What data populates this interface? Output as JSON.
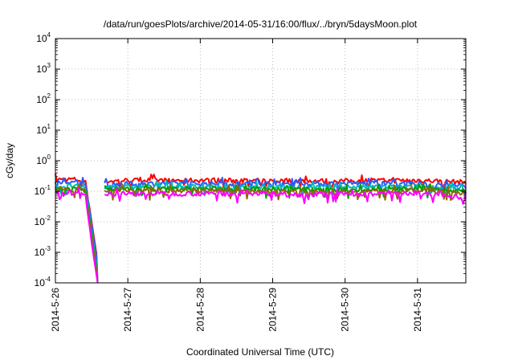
{
  "chart_data": {
    "type": "line",
    "title": "/data/run/goesPlots/archive/2014-05-31/16:00/flux/../bryn/5daysMoon.plot",
    "xlabel": "Coordinated Universal Time (UTC)",
    "ylabel": "cGy/day",
    "x_range": [
      "2014-05-26T00:00",
      "2014-05-31T16:00"
    ],
    "x_ticks": [
      "2014-5-26",
      "2014-5-27",
      "2014-5-28",
      "2014-5-29",
      "2014-5-30",
      "2014-5-31"
    ],
    "y_scale": "log",
    "ylim": [
      0.0001,
      10000
    ],
    "y_ticks": [
      {
        "base": "10",
        "exp": "4"
      },
      {
        "base": "10",
        "exp": "3"
      },
      {
        "base": "10",
        "exp": "2"
      },
      {
        "base": "10",
        "exp": "1"
      },
      {
        "base": "10",
        "exp": "0"
      },
      {
        "base": "10",
        "exp": "-1"
      },
      {
        "base": "10",
        "exp": "-2"
      },
      {
        "base": "10",
        "exp": "-3"
      },
      {
        "base": "10",
        "exp": "-4"
      }
    ],
    "grid": true,
    "dropout": {
      "start": "2014-05-26T14:00",
      "end": "2014-05-26T16:00"
    },
    "series": [
      {
        "color": "#ff0000",
        "values": [
          [
            "2014-05-26T00:00",
            0.24
          ],
          [
            "2014-05-26T06:00",
            0.25
          ],
          [
            "2014-05-26T10:00",
            0.22
          ],
          [
            "2014-05-26T12:00",
            0.01
          ],
          [
            "2014-05-26T14:00",
            0.0005
          ],
          [
            "2014-05-26T16:00",
            0.21
          ],
          [
            "2014-05-27T00:00",
            0.23
          ],
          [
            "2014-05-28T00:00",
            0.23
          ],
          [
            "2014-05-29T00:00",
            0.22
          ],
          [
            "2014-05-30T00:00",
            0.22
          ],
          [
            "2014-05-31T00:00",
            0.23
          ],
          [
            "2014-05-31T16:00",
            0.2
          ]
        ]
      },
      {
        "color": "#2a5cff",
        "values": [
          [
            "2014-05-26T00:00",
            0.19
          ],
          [
            "2014-05-26T06:00",
            0.2
          ],
          [
            "2014-05-26T10:00",
            0.18
          ],
          [
            "2014-05-26T12:00",
            0.008
          ],
          [
            "2014-05-26T14:00",
            0.0004
          ],
          [
            "2014-05-26T16:00",
            0.17
          ],
          [
            "2014-05-27T00:00",
            0.18
          ],
          [
            "2014-05-28T00:00",
            0.18
          ],
          [
            "2014-05-29T00:00",
            0.18
          ],
          [
            "2014-05-30T00:00",
            0.18
          ],
          [
            "2014-05-31T00:00",
            0.18
          ],
          [
            "2014-05-31T16:00",
            0.15
          ]
        ]
      },
      {
        "color": "#00b8b8",
        "values": [
          [
            "2014-05-26T00:00",
            0.14
          ],
          [
            "2014-05-26T06:00",
            0.15
          ],
          [
            "2014-05-26T10:00",
            0.13
          ],
          [
            "2014-05-26T12:00",
            0.005
          ],
          [
            "2014-05-26T14:00",
            0.0002
          ],
          [
            "2014-05-26T16:00",
            0.13
          ],
          [
            "2014-05-27T00:00",
            0.14
          ],
          [
            "2014-05-28T00:00",
            0.14
          ],
          [
            "2014-05-29T00:00",
            0.14
          ],
          [
            "2014-05-30T00:00",
            0.14
          ],
          [
            "2014-05-31T00:00",
            0.14
          ],
          [
            "2014-05-31T16:00",
            0.12
          ]
        ]
      },
      {
        "color": "#00a000",
        "values": [
          [
            "2014-05-26T00:00",
            0.12
          ],
          [
            "2014-05-26T06:00",
            0.12
          ],
          [
            "2014-05-26T10:00",
            0.11
          ],
          [
            "2014-05-26T12:00",
            0.004
          ],
          [
            "2014-05-26T14:00",
            0.00015
          ],
          [
            "2014-05-26T16:00",
            0.11
          ],
          [
            "2014-05-27T00:00",
            0.12
          ],
          [
            "2014-05-28T00:00",
            0.12
          ],
          [
            "2014-05-29T00:00",
            0.12
          ],
          [
            "2014-05-30T00:00",
            0.11
          ],
          [
            "2014-05-31T00:00",
            0.12
          ],
          [
            "2014-05-31T16:00",
            0.1
          ]
        ]
      },
      {
        "color": "#8b6a00",
        "values": [
          [
            "2014-05-26T00:00",
            0.105
          ],
          [
            "2014-05-26T06:00",
            0.11
          ],
          [
            "2014-05-26T10:00",
            0.1
          ],
          [
            "2014-05-26T12:00",
            0.003
          ],
          [
            "2014-05-26T14:00",
            0.00012
          ],
          [
            "2014-05-26T16:00",
            0.1
          ],
          [
            "2014-05-27T00:00",
            0.105
          ],
          [
            "2014-05-28T00:00",
            0.105
          ],
          [
            "2014-05-29T00:00",
            0.1
          ],
          [
            "2014-05-30T00:00",
            0.1
          ],
          [
            "2014-05-31T00:00",
            0.105
          ],
          [
            "2014-05-31T16:00",
            0.09
          ]
        ]
      },
      {
        "color": "#ff00ff",
        "values": [
          [
            "2014-05-26T00:00",
            0.085
          ],
          [
            "2014-05-26T06:00",
            0.09
          ],
          [
            "2014-05-26T10:00",
            0.08
          ],
          [
            "2014-05-26T12:00",
            0.002
          ],
          [
            "2014-05-26T14:00",
            0.0001
          ],
          [
            "2014-05-26T16:00",
            0.08
          ],
          [
            "2014-05-27T00:00",
            0.085
          ],
          [
            "2014-05-28T00:00",
            0.085
          ],
          [
            "2014-05-29T00:00",
            0.08
          ],
          [
            "2014-05-30T00:00",
            0.08
          ],
          [
            "2014-05-31T00:00",
            0.085
          ],
          [
            "2014-05-31T16:00",
            0.06
          ]
        ]
      }
    ]
  }
}
